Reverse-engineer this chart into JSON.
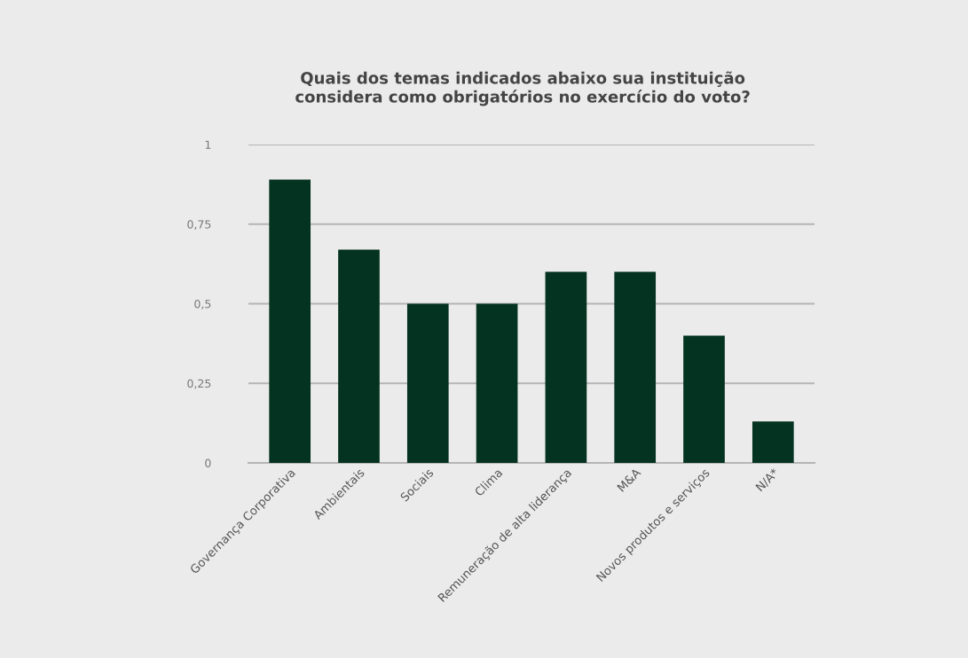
{
  "chart_data": {
    "type": "bar",
    "title": "Quais dos temas indicados abaixo sua instituição\nconsidera como obrigatórios no exercício do voto?",
    "categories": [
      "Governança Corporativa",
      "Ambientais",
      "Sociais",
      "Clima",
      "Remuneração de alta liderança",
      "M&A",
      "Novos produtos e serviços",
      "N/A*"
    ],
    "values": [
      0.89,
      0.67,
      0.5,
      0.5,
      0.6,
      0.6,
      0.4,
      0.13
    ],
    "color": "#053321",
    "ylim": [
      0,
      1
    ],
    "yticks": [
      {
        "value": 0,
        "label": "0"
      },
      {
        "value": 0.25,
        "label": "0,25"
      },
      {
        "value": 0.5,
        "label": "0,5"
      },
      {
        "value": 0.75,
        "label": "0,75"
      },
      {
        "value": 1,
        "label": "1"
      }
    ],
    "grid": "y"
  }
}
